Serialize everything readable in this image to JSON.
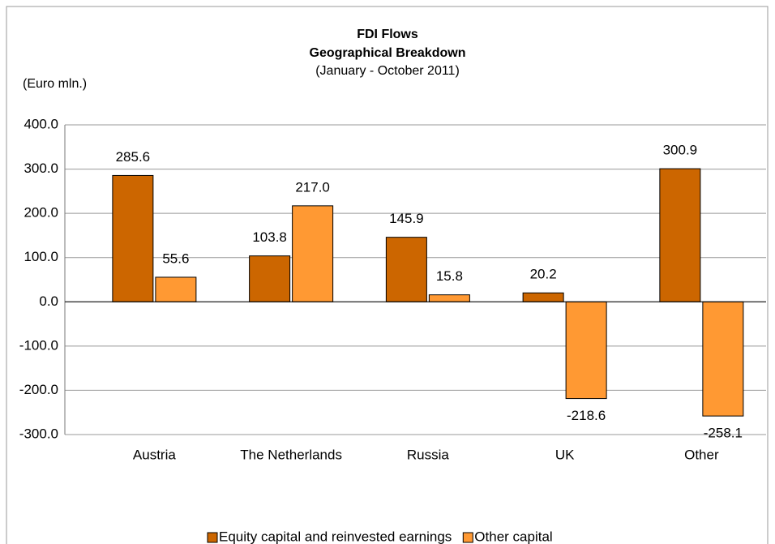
{
  "chart_data": {
    "type": "bar",
    "title": "FDI Flows",
    "subtitle": "Geographical Breakdown",
    "period": "(January - October 2011)",
    "y_label": "(Euro mln.)",
    "categories": [
      "Austria",
      "The Netherlands",
      "Russia",
      "UK",
      "Other"
    ],
    "series": [
      {
        "name": "Equity capital and reinvested earnings",
        "color": "#cc6600",
        "values": [
          285.6,
          103.8,
          145.9,
          20.2,
          300.9
        ],
        "value_labels": [
          "285.6",
          "103.8",
          "145.9",
          "20.2",
          "300.9"
        ]
      },
      {
        "name": "Other capital",
        "color": "#ff9933",
        "values": [
          55.6,
          217.0,
          15.8,
          -218.6,
          -258.1
        ],
        "value_labels": [
          "55.6",
          "217.0",
          "15.8",
          "-218.6",
          "-258.1"
        ]
      }
    ],
    "ylim": [
      -300,
      400
    ],
    "yticks": [
      {
        "value": -300,
        "label": "-300.0"
      },
      {
        "value": -200,
        "label": "-200.0"
      },
      {
        "value": -100,
        "label": "-100.0"
      },
      {
        "value": 0,
        "label": "0.0"
      },
      {
        "value": 100,
        "label": "100.0"
      },
      {
        "value": 200,
        "label": "200.0"
      },
      {
        "value": 300,
        "label": "300.0"
      },
      {
        "value": 400,
        "label": "400.0"
      }
    ],
    "grid": true,
    "legend": "bottom"
  }
}
